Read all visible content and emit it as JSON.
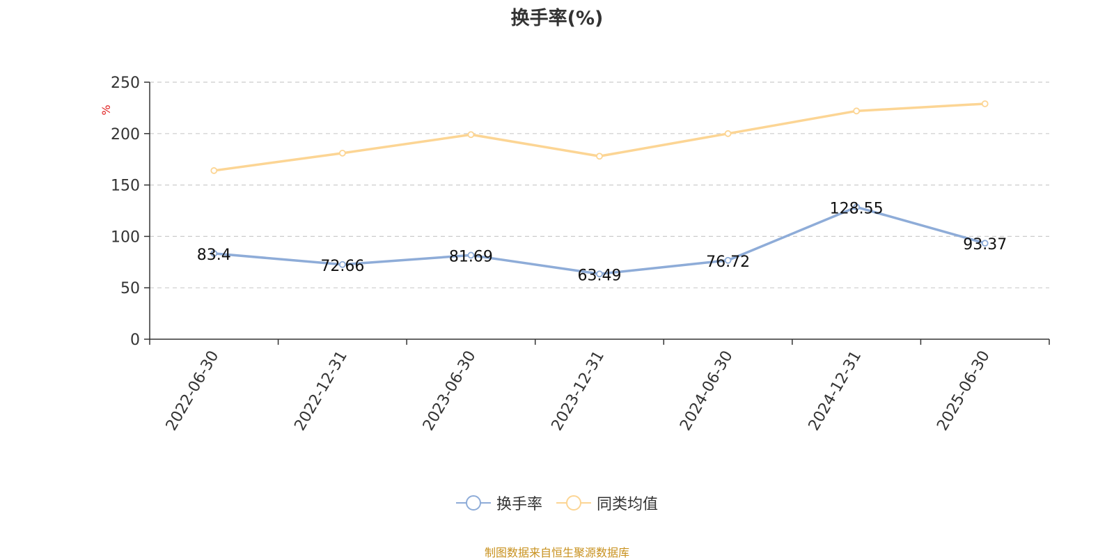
{
  "chart_data": {
    "type": "line",
    "title": "换手率(%)",
    "ylabel": "%",
    "ylim": [
      0,
      250
    ],
    "yticks": [
      0,
      50,
      100,
      150,
      200,
      250
    ],
    "categories": [
      "2022-06-30",
      "2022-12-31",
      "2023-06-30",
      "2023-12-31",
      "2024-06-30",
      "2024-12-31",
      "2025-06-30"
    ],
    "series": [
      {
        "name": "换手率",
        "color": "#8eacd8",
        "values": [
          83.4,
          72.66,
          81.69,
          63.49,
          76.72,
          128.55,
          93.37
        ],
        "labels": [
          "83.4",
          "72.66",
          "81.69",
          "63.49",
          "76.72",
          "128.55",
          "93.37"
        ]
      },
      {
        "name": "同类均值",
        "color": "#fcd594",
        "values": [
          164,
          181,
          199,
          178,
          200,
          222,
          229
        ]
      }
    ],
    "grid": true,
    "legend": "bottom-center"
  },
  "source_text": "制图数据来自恒生聚源数据库"
}
